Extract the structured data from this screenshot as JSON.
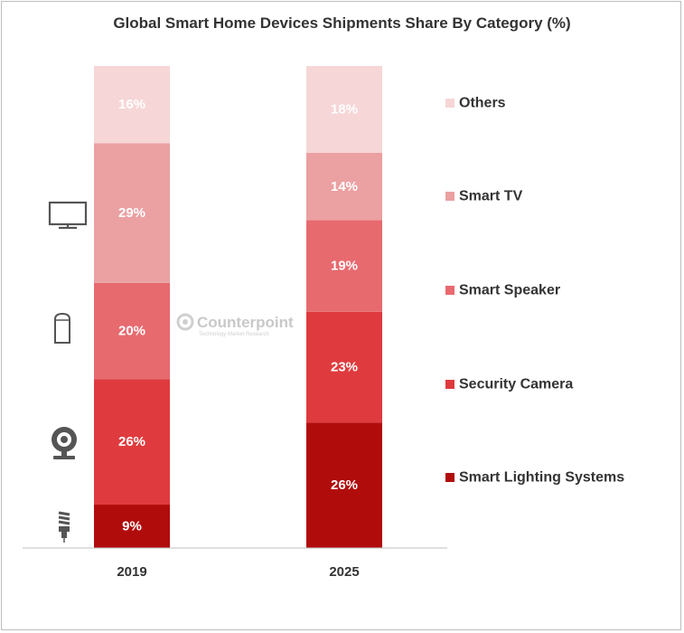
{
  "watermark": {
    "brand": "Counterpoint",
    "tagline": "Technology Market Research"
  },
  "icons": [
    "tv-icon",
    "smart-speaker-icon",
    "security-camera-icon",
    "light-bulb-icon"
  ],
  "chart_data": {
    "type": "bar",
    "stacked": true,
    "title": "Global Smart Home Devices Shipments Share By Category (%)",
    "xlabel": "",
    "ylabel": "",
    "ylim": [
      0,
      100
    ],
    "grid": false,
    "legend_position": "right",
    "categories": [
      "2019",
      "2025"
    ],
    "series": [
      {
        "name": "Smart Lighting Systems",
        "color": "#b10c0c",
        "values": [
          9,
          26
        ],
        "labels": [
          "9%",
          "26%"
        ]
      },
      {
        "name": "Security Camera",
        "color": "#df3b3e",
        "values": [
          26,
          23
        ],
        "labels": [
          "26%",
          "23%"
        ]
      },
      {
        "name": "Smart Speaker",
        "color": "#e76a6f",
        "values": [
          20,
          19
        ],
        "labels": [
          "20%",
          "19%"
        ]
      },
      {
        "name": "Smart TV",
        "color": "#eba0a2",
        "values": [
          29,
          14
        ],
        "labels": [
          "29%",
          "14%"
        ]
      },
      {
        "name": "Others",
        "color": "#f6d6d7",
        "values": [
          16,
          18
        ],
        "labels": [
          "16%",
          "18%"
        ]
      }
    ]
  }
}
